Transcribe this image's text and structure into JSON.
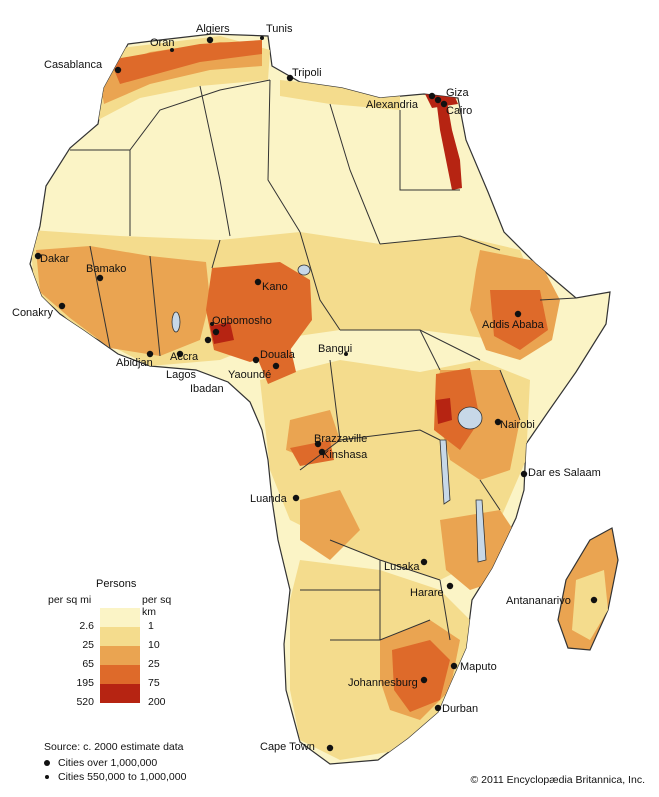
{
  "legend": {
    "title": "Persons",
    "left_header": "per sq mi",
    "right_header": "per sq km",
    "classes": [
      {
        "mi": "2.6",
        "km": "1",
        "color": "#fbf4c6"
      },
      {
        "mi": "25",
        "km": "10",
        "color": "#f4dc8d"
      },
      {
        "mi": "65",
        "km": "25",
        "color": "#eaa451"
      },
      {
        "mi": "195",
        "km": "75",
        "color": "#de6a2a"
      },
      {
        "mi": "520",
        "km": "200",
        "color": "#b62412"
      }
    ]
  },
  "source": "Source:  c. 2000 estimate data",
  "key": {
    "large": "Cities over 1,000,000",
    "small": "Cities 550,000 to 1,000,000"
  },
  "copyright": "© 2011 Encyclopædia Britannica, Inc.",
  "cities": [
    {
      "name": "Algiers",
      "size": "large"
    },
    {
      "name": "Tunis",
      "size": "small"
    },
    {
      "name": "Oran",
      "size": "small"
    },
    {
      "name": "Casablanca",
      "size": "large"
    },
    {
      "name": "Tripoli",
      "size": "large"
    },
    {
      "name": "Giza",
      "size": "large"
    },
    {
      "name": "Alexandria",
      "size": "large"
    },
    {
      "name": "Cairo",
      "size": "large"
    },
    {
      "name": "Dakar",
      "size": "large"
    },
    {
      "name": "Bamako",
      "size": "large"
    },
    {
      "name": "Conakry",
      "size": "large"
    },
    {
      "name": "Kano",
      "size": "large"
    },
    {
      "name": "Ogbomosho",
      "size": "small"
    },
    {
      "name": "Addis Ababa",
      "size": "large"
    },
    {
      "name": "Abidjan",
      "size": "large"
    },
    {
      "name": "Accra",
      "size": "large"
    },
    {
      "name": "Lagos",
      "size": "large"
    },
    {
      "name": "Ibadan",
      "size": "large"
    },
    {
      "name": "Douala",
      "size": "large"
    },
    {
      "name": "Yaoundé",
      "size": "large"
    },
    {
      "name": "Bangui",
      "size": "small"
    },
    {
      "name": "Nairobi",
      "size": "large"
    },
    {
      "name": "Brazzaville",
      "size": "large"
    },
    {
      "name": "Kinshasa",
      "size": "large"
    },
    {
      "name": "Dar es Salaam",
      "size": "large"
    },
    {
      "name": "Luanda",
      "size": "large"
    },
    {
      "name": "Lusaka",
      "size": "large"
    },
    {
      "name": "Harare",
      "size": "large"
    },
    {
      "name": "Antananarivo",
      "size": "large"
    },
    {
      "name": "Maputo",
      "size": "large"
    },
    {
      "name": "Johannesburg",
      "size": "large"
    },
    {
      "name": "Durban",
      "size": "large"
    },
    {
      "name": "Cape Town",
      "size": "large"
    }
  ]
}
